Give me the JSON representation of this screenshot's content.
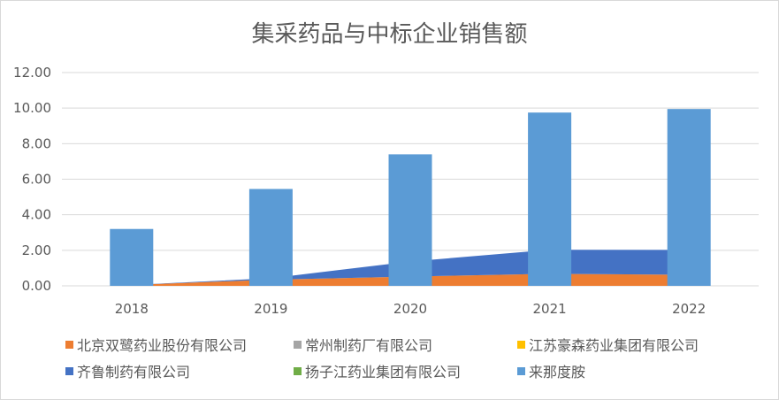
{
  "chart_data": {
    "title": "集采药品与中标企业销售额",
    "categories": [
      "2018",
      "2019",
      "2020",
      "2021",
      "2022"
    ],
    "y_ticks": [
      "0.00",
      "2.00",
      "4.00",
      "6.00",
      "8.00",
      "10.00",
      "12.00"
    ],
    "ylim": [
      0,
      12
    ],
    "grid": true,
    "legend_position": "bottom",
    "series": [
      {
        "name": "北京双鹭药业股份有限公司",
        "type": "area",
        "color": "#ED7D31",
        "values": [
          0.05,
          0.35,
          0.52,
          0.68,
          0.62
        ]
      },
      {
        "name": "常州制药厂有限公司",
        "type": "area",
        "color": "#A5A5A5",
        "values": [
          0,
          0,
          0,
          0,
          0
        ]
      },
      {
        "name": "江苏豪森药业集团有限公司",
        "type": "area",
        "color": "#FFC000",
        "values": [
          0,
          0,
          0,
          0,
          0
        ]
      },
      {
        "name": "齐鲁制药有限公司",
        "type": "area",
        "color": "#4472C4",
        "values": [
          0,
          0.08,
          0.85,
          1.35,
          1.4
        ]
      },
      {
        "name": "扬子江药业集团有限公司",
        "type": "area",
        "color": "#70AD47",
        "values": [
          0,
          0,
          0,
          0,
          0
        ]
      },
      {
        "name": "来那度胺",
        "type": "bar",
        "color": "#5B9BD5",
        "values": [
          3.2,
          5.45,
          7.4,
          9.75,
          9.95
        ]
      }
    ]
  }
}
